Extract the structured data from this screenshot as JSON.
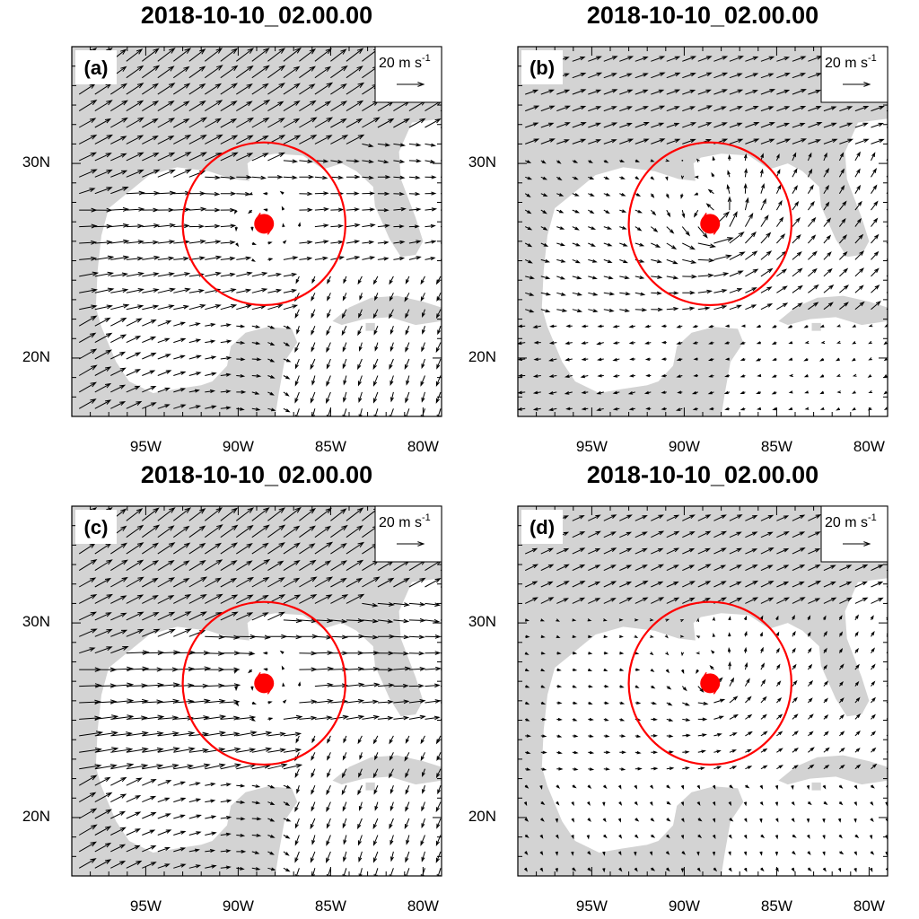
{
  "panels": [
    {
      "id": "a",
      "title": "2018-10-10_02.00.00",
      "label": "(a)",
      "scale_label": "20 m s",
      "scale_exp": "-1",
      "pattern": "strongnw"
    },
    {
      "id": "b",
      "title": "2018-10-10_02.00.00",
      "label": "(b)",
      "scale_label": "20 m s",
      "scale_exp": "-1",
      "pattern": "cyclonic"
    },
    {
      "id": "c",
      "title": "2018-10-10_02.00.00",
      "label": "(c)",
      "scale_label": "20 m s",
      "scale_exp": "-1",
      "pattern": "strongw"
    },
    {
      "id": "d",
      "title": "2018-10-10_02.00.00",
      "label": "(d)",
      "scale_label": "20 m s",
      "scale_exp": "-1",
      "pattern": "weak"
    }
  ],
  "axes": {
    "lon_range": [
      -99,
      -79
    ],
    "lat_range": [
      17,
      36
    ],
    "lat_ticks": [
      {
        "value": 30,
        "label": "30N"
      },
      {
        "value": 20,
        "label": "20N"
      }
    ],
    "lon_ticks": [
      {
        "value": -95,
        "label": "95W"
      },
      {
        "value": -90,
        "label": "90W"
      },
      {
        "value": -85,
        "label": "85W"
      },
      {
        "value": -80,
        "label": "80W"
      }
    ]
  },
  "storm": {
    "center_lon": -88.6,
    "center_lat": 26.9,
    "circle_radius_deg": 4.4
  },
  "colors": {
    "land": "#d3d3d3",
    "circle": "#ff0000",
    "storm_symbol": "#ff0000",
    "vector": "#000000"
  }
}
